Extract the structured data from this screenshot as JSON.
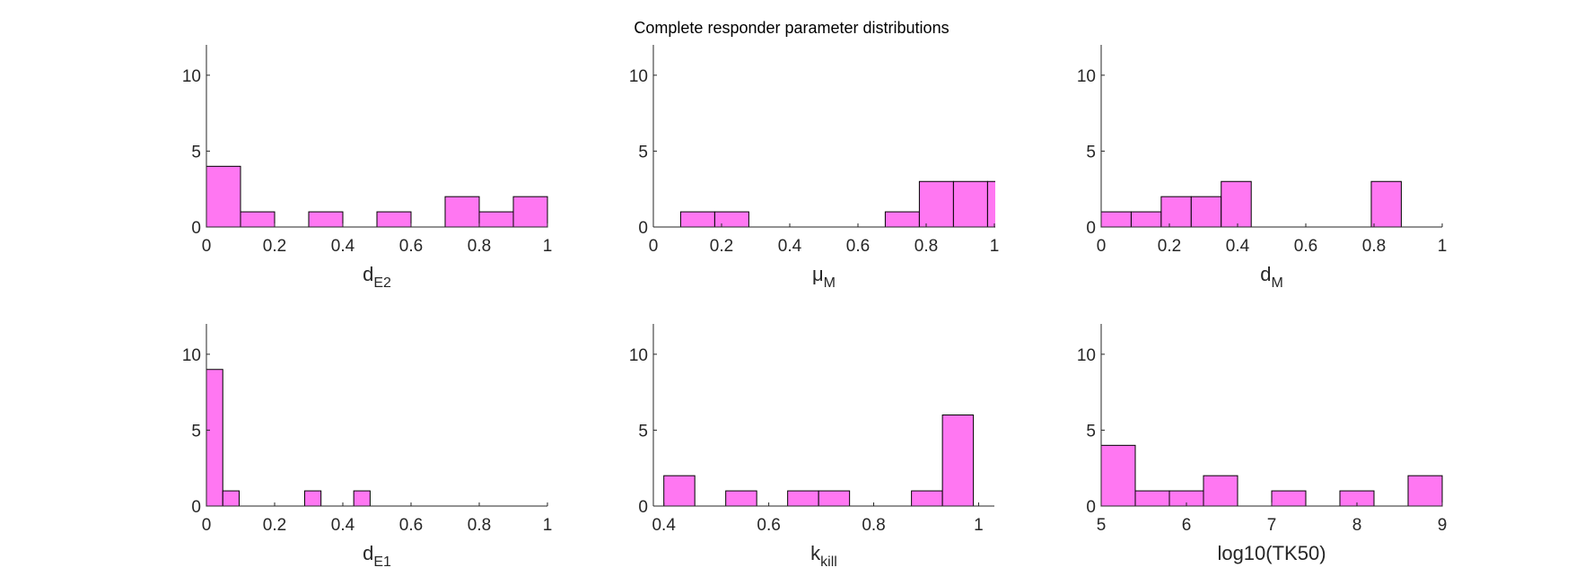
{
  "suptitle": "Complete responder parameter distributions",
  "colors": {
    "bar": "#ff77f2",
    "bar_edge": "#000000",
    "axis": "#262626"
  },
  "chart_data": [
    {
      "type": "histogram",
      "xlabel_main": "d",
      "xlabel_sub": "E2",
      "xlim": [
        0,
        1
      ],
      "ylim": [
        0,
        12
      ],
      "xticks": [
        0,
        0.2,
        0.4,
        0.6,
        0.8,
        1
      ],
      "xtick_labels": [
        "0",
        "0.2",
        "0.4",
        "0.6",
        "0.8",
        "1"
      ],
      "yticks": [
        0,
        5,
        10
      ],
      "ytick_labels": [
        "0",
        "5",
        "10"
      ],
      "bin_edges": [
        0,
        0.1,
        0.2,
        0.3,
        0.4,
        0.5,
        0.6,
        0.7,
        0.8,
        0.9,
        1.0
      ],
      "counts": [
        4,
        1,
        0,
        1,
        0,
        1,
        0,
        2,
        1,
        2
      ]
    },
    {
      "type": "histogram",
      "xlabel_main": "μ",
      "xlabel_sub": "M",
      "xlim": [
        0,
        1
      ],
      "ylim": [
        0,
        12
      ],
      "xticks": [
        0,
        0.2,
        0.4,
        0.6,
        0.8,
        1
      ],
      "xtick_labels": [
        "0",
        "0.2",
        "0.4",
        "0.6",
        "0.8",
        "1"
      ],
      "yticks": [
        0,
        5,
        10
      ],
      "ytick_labels": [
        "0",
        "5",
        "10"
      ],
      "bin_edges": [
        0.08,
        0.18,
        0.28,
        0.38,
        0.48,
        0.58,
        0.68,
        0.78,
        0.88,
        0.98,
        1.08
      ],
      "counts": [
        1,
        1,
        0,
        0,
        0,
        0,
        1,
        3,
        3,
        3
      ]
    },
    {
      "type": "histogram",
      "xlabel_main": "d",
      "xlabel_sub": "M",
      "xlim": [
        0,
        1
      ],
      "ylim": [
        0,
        12
      ],
      "xticks": [
        0,
        0.2,
        0.4,
        0.6,
        0.8,
        1
      ],
      "xtick_labels": [
        "0",
        "0.2",
        "0.4",
        "0.6",
        "0.8",
        "1"
      ],
      "yticks": [
        0,
        5,
        10
      ],
      "ytick_labels": [
        "0",
        "5",
        "10"
      ],
      "bin_edges": [
        0,
        0.088,
        0.176,
        0.264,
        0.352,
        0.44,
        0.528,
        0.616,
        0.704,
        0.792,
        0.88
      ],
      "counts": [
        1,
        1,
        2,
        2,
        3,
        0,
        0,
        0,
        0,
        3
      ]
    },
    {
      "type": "histogram",
      "xlabel_main": "d",
      "xlabel_sub": "E1",
      "xlim": [
        0,
        1
      ],
      "ylim": [
        0,
        12
      ],
      "xticks": [
        0,
        0.2,
        0.4,
        0.6,
        0.8,
        1
      ],
      "xtick_labels": [
        "0",
        "0.2",
        "0.4",
        "0.6",
        "0.8",
        "1"
      ],
      "yticks": [
        0,
        5,
        10
      ],
      "ytick_labels": [
        "0",
        "5",
        "10"
      ],
      "bin_edges": [
        0,
        0.048,
        0.096,
        0.144,
        0.192,
        0.24,
        0.288,
        0.336,
        0.384,
        0.432,
        0.48
      ],
      "counts": [
        9,
        1,
        0,
        0,
        0,
        0,
        1,
        0,
        0,
        1
      ]
    },
    {
      "type": "histogram",
      "xlabel_main": "k",
      "xlabel_sub": "kill",
      "xlim": [
        0.38,
        1.03
      ],
      "ylim": [
        0,
        12
      ],
      "xticks": [
        0.4,
        0.6,
        0.8,
        1
      ],
      "xtick_labels": [
        "0.4",
        "0.6",
        "0.8",
        "1"
      ],
      "yticks": [
        0,
        5,
        10
      ],
      "ytick_labels": [
        "0",
        "5",
        "10"
      ],
      "bin_edges": [
        0.4,
        0.459,
        0.518,
        0.577,
        0.636,
        0.695,
        0.754,
        0.813,
        0.872,
        0.931,
        0.99
      ],
      "counts": [
        2,
        0,
        1,
        0,
        1,
        1,
        0,
        0,
        1,
        6
      ]
    },
    {
      "type": "histogram",
      "xlabel_main": "log10(TK50)",
      "xlabel_sub": "",
      "xlim": [
        5,
        9
      ],
      "ylim": [
        0,
        12
      ],
      "xticks": [
        5,
        6,
        7,
        8,
        9
      ],
      "xtick_labels": [
        "5",
        "6",
        "7",
        "8",
        "9"
      ],
      "yticks": [
        0,
        5,
        10
      ],
      "ytick_labels": [
        "0",
        "5",
        "10"
      ],
      "bin_edges": [
        5.0,
        5.4,
        5.8,
        6.2,
        6.6,
        7.0,
        7.4,
        7.8,
        8.2,
        8.6,
        9.0
      ],
      "counts": [
        4,
        1,
        1,
        2,
        0,
        1,
        0,
        1,
        0,
        2
      ]
    }
  ]
}
